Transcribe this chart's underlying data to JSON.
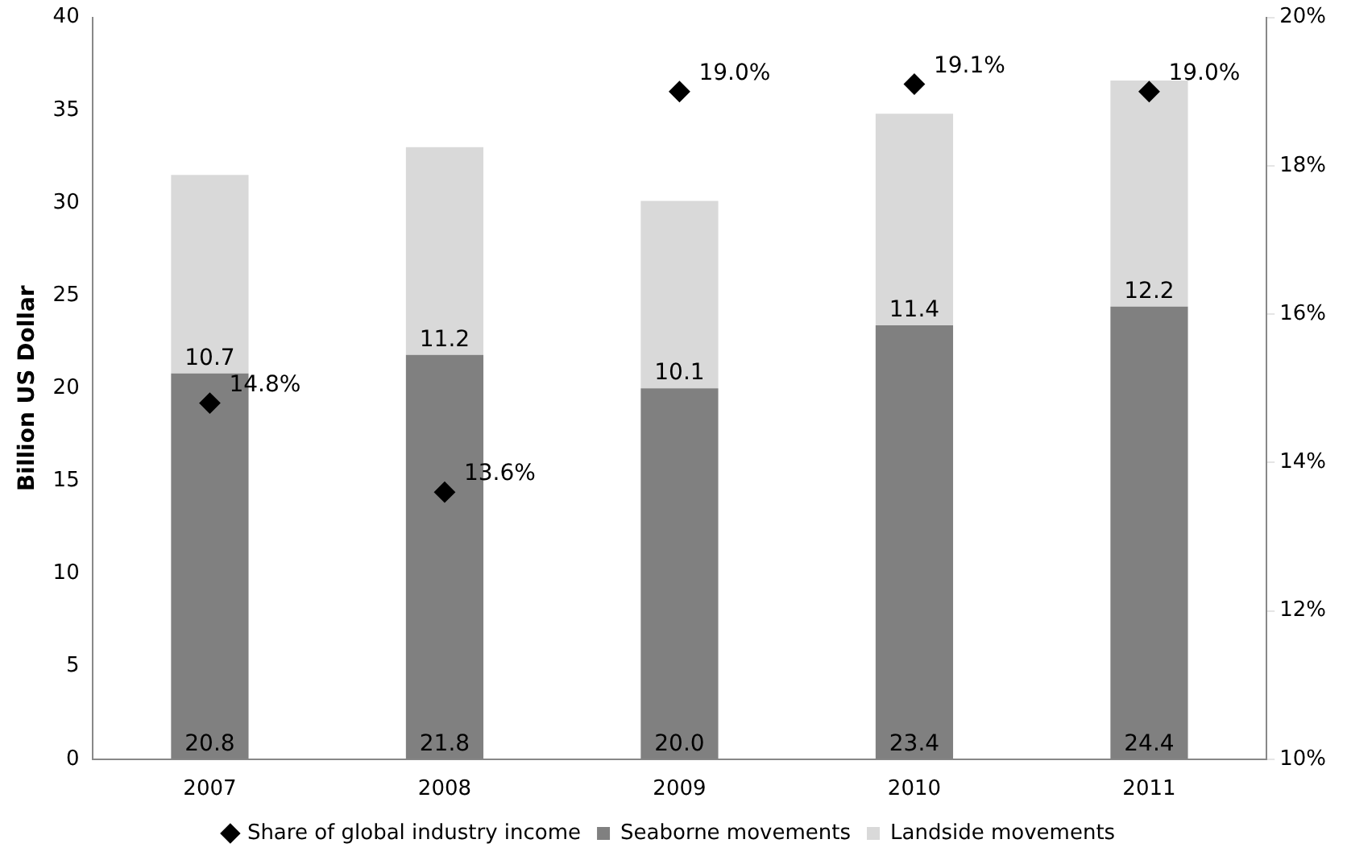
{
  "chart_data": {
    "type": "bar",
    "stacked": true,
    "ylabel": "Billion US Dollar",
    "categories": [
      "2007",
      "2008",
      "2009",
      "2010",
      "2011"
    ],
    "series": [
      {
        "name": "Seaborne movements",
        "color": "#808080",
        "values": [
          20.8,
          21.8,
          20.0,
          23.4,
          24.4
        ],
        "value_labels": [
          "20.8",
          "21.8",
          "20.0",
          "23.4",
          "24.4"
        ]
      },
      {
        "name": "Landside movements",
        "color": "#d9d9d9",
        "values": [
          10.7,
          11.2,
          10.1,
          11.4,
          12.2
        ],
        "value_labels": [
          "10.7",
          "11.2",
          "10.1",
          "11.4",
          "12.2"
        ]
      },
      {
        "name": "Share of global industry income",
        "type": "scatter",
        "axis": "y2",
        "color": "#000000",
        "values": [
          14.8,
          13.6,
          19.0,
          19.1,
          19.0
        ],
        "value_labels": [
          "14.8%",
          "13.6%",
          "19.0%",
          "19.1%",
          "19.0%"
        ]
      }
    ],
    "ylim": [
      0,
      40
    ],
    "yticks": [
      0,
      5,
      10,
      15,
      20,
      25,
      30,
      35,
      40
    ],
    "y2lim": [
      10,
      20
    ],
    "y2ticks": [
      {
        "value": 10,
        "label": "10%"
      },
      {
        "value": 12,
        "label": "12%"
      },
      {
        "value": 14,
        "label": "14%"
      },
      {
        "value": 16,
        "label": "16%"
      },
      {
        "value": 18,
        "label": "18%"
      },
      {
        "value": 20,
        "label": "20%"
      }
    ],
    "grid": false,
    "legend": "bottom",
    "marker": "diamond"
  }
}
